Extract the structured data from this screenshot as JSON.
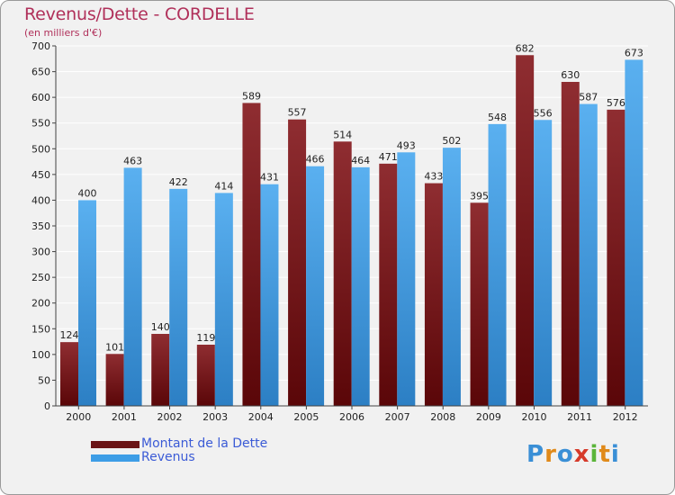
{
  "title": "Revenus/Dette - CORDELLE",
  "subtitle": "(en milliers d'€)",
  "colors": {
    "dette": "#6b1416",
    "revenus": "#3d9de6",
    "title": "#b0305a",
    "legend_text": "#3b5bd6"
  },
  "legend": [
    {
      "label": "Montant de la Dette",
      "color": "#6b1416"
    },
    {
      "label": "Revenus",
      "color": "#3d9de6"
    }
  ],
  "logo": {
    "letters": [
      "P",
      "r",
      "o",
      "x",
      "i",
      "t",
      "i"
    ]
  },
  "chart_data": {
    "type": "bar",
    "categories": [
      "2000",
      "2001",
      "2002",
      "2003",
      "2004",
      "2005",
      "2006",
      "2007",
      "2008",
      "2009",
      "2010",
      "2011",
      "2012"
    ],
    "series": [
      {
        "name": "Montant de la Dette",
        "values": [
          124,
          101,
          140,
          119,
          589,
          557,
          514,
          471,
          433,
          395,
          682,
          630,
          576
        ]
      },
      {
        "name": "Revenus",
        "values": [
          400,
          463,
          422,
          414,
          431,
          466,
          464,
          493,
          502,
          548,
          556,
          587,
          673
        ]
      }
    ],
    "ylim": [
      0,
      700
    ],
    "yticks": [
      0,
      50,
      100,
      150,
      200,
      250,
      300,
      350,
      400,
      450,
      500,
      550,
      600,
      650,
      700
    ],
    "grid": true,
    "legend_position": "bottom-left"
  }
}
